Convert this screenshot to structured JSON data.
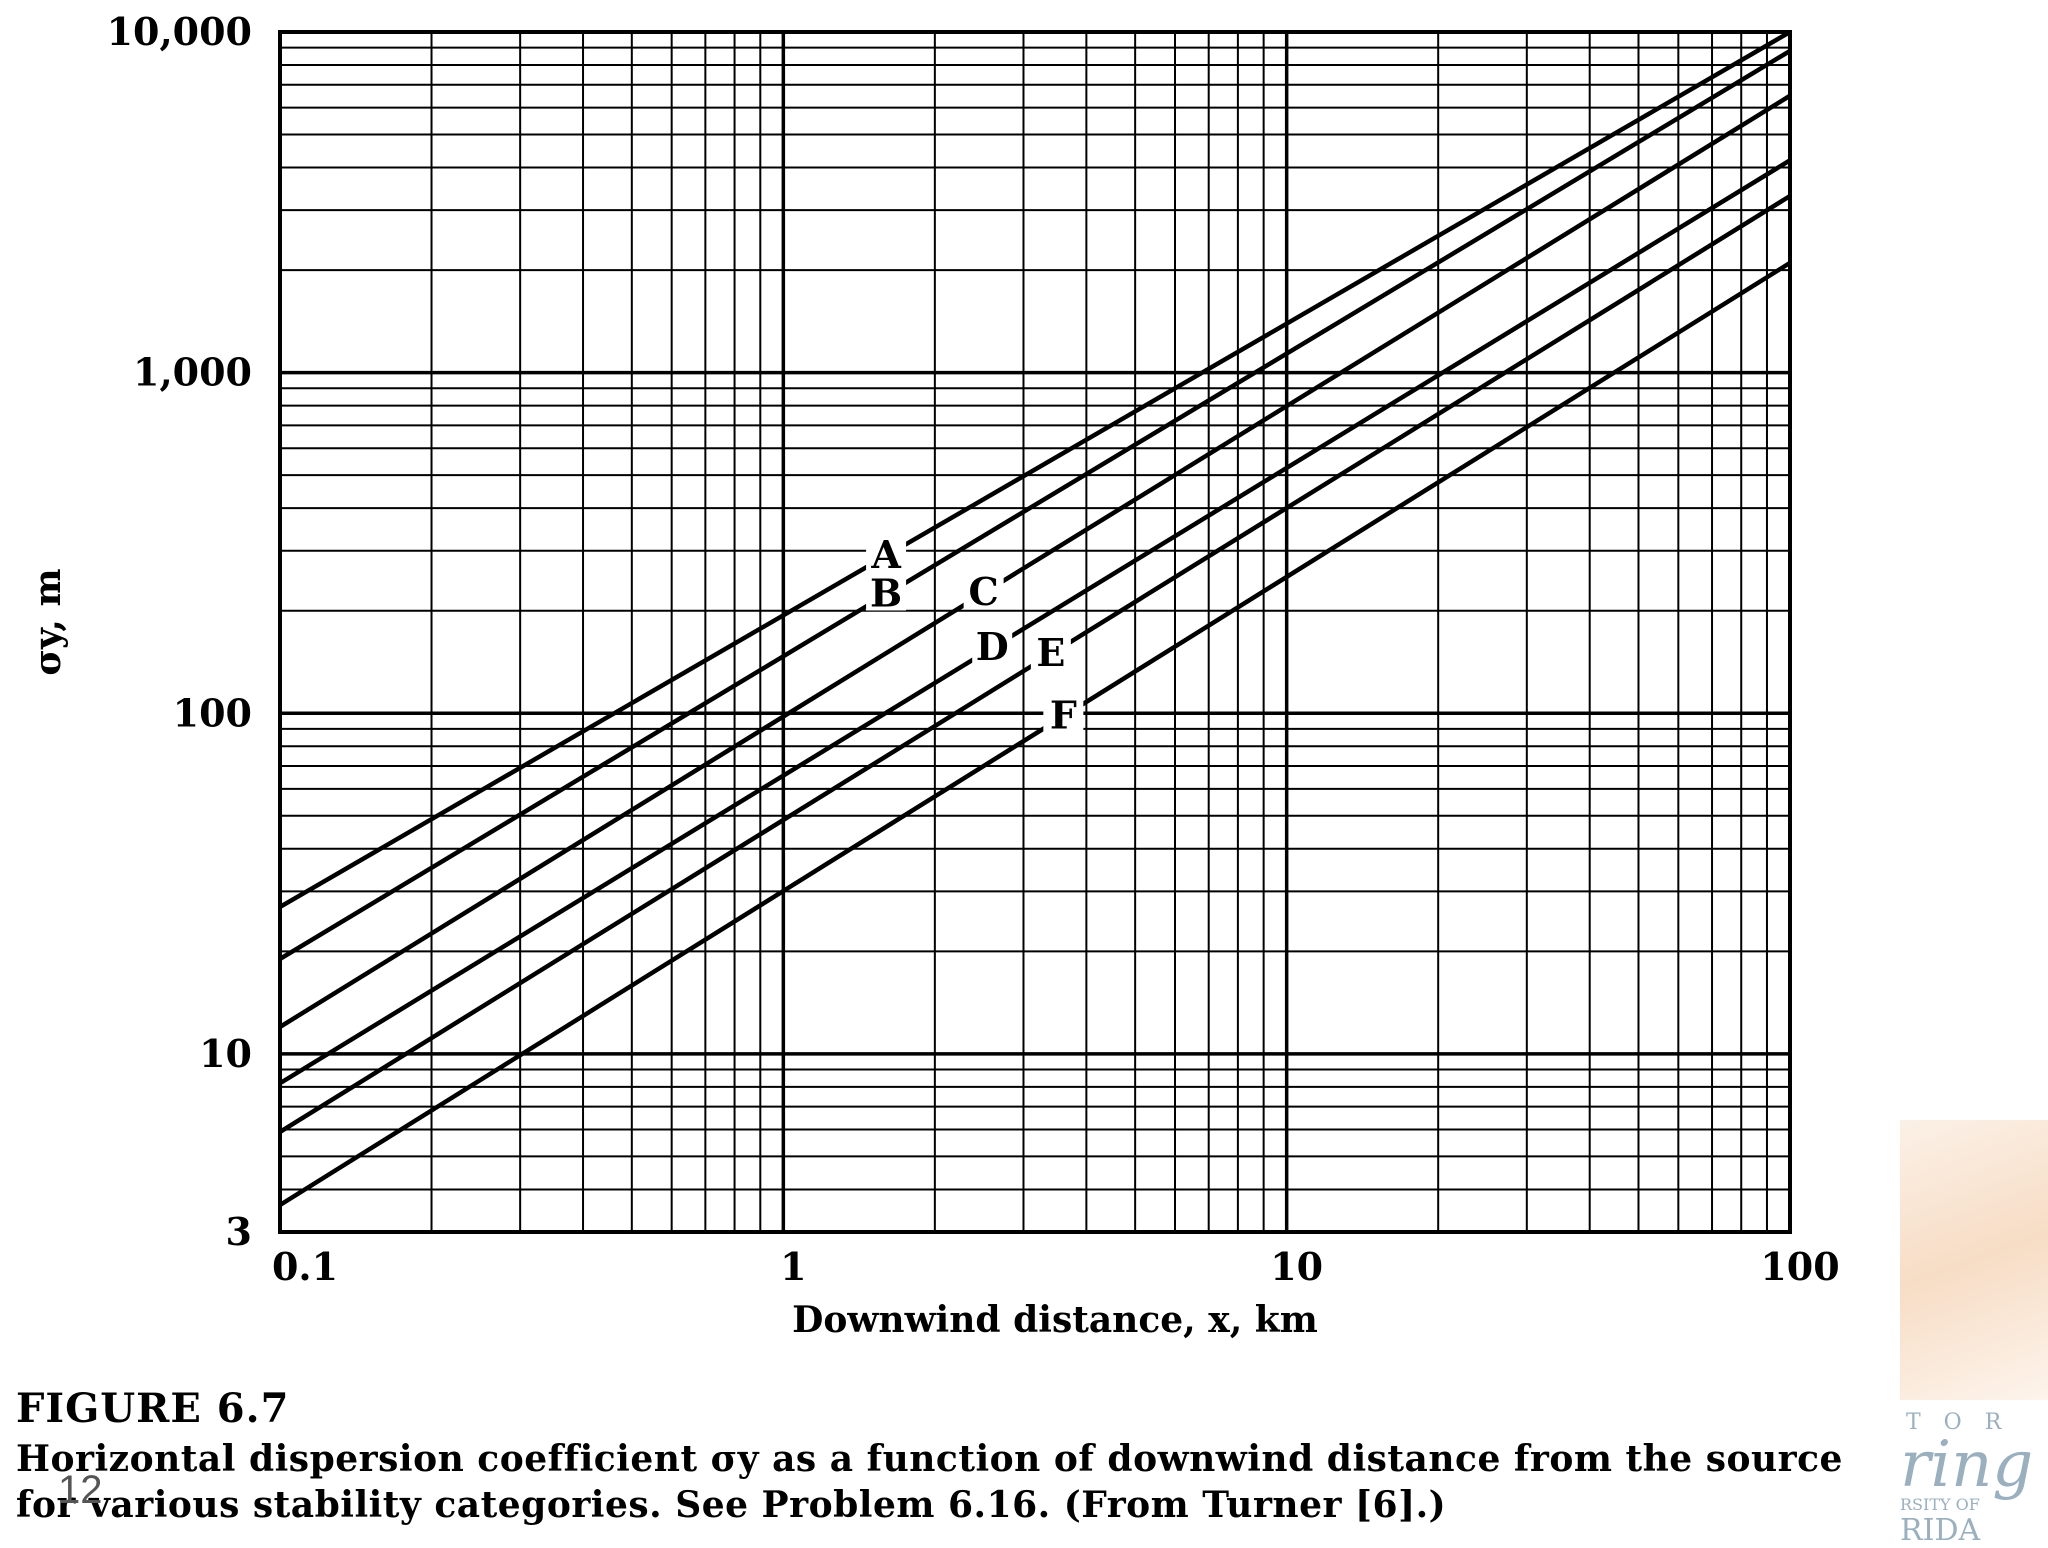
{
  "chart_data": {
    "type": "line",
    "title": "",
    "xlabel": "Downwind distance, x, km",
    "ylabel": "σy, m",
    "xscale": "log",
    "yscale": "log",
    "xlim": [
      0.1,
      100
    ],
    "ylim": [
      3,
      10000
    ],
    "grid": true,
    "x_tick_labels": [
      "0.1",
      "1",
      "10",
      "100"
    ],
    "y_tick_labels": [
      "10,000",
      "1,000",
      "100",
      "10",
      "3"
    ],
    "series": [
      {
        "name": "A",
        "x": [
          0.1,
          100
        ],
        "y": [
          27,
          10000
        ]
      },
      {
        "name": "B",
        "x": [
          0.1,
          100
        ],
        "y": [
          19,
          8800
        ]
      },
      {
        "name": "C",
        "x": [
          0.1,
          100
        ],
        "y": [
          12,
          6500
        ]
      },
      {
        "name": "D",
        "x": [
          0.1,
          100
        ],
        "y": [
          8.2,
          4200
        ]
      },
      {
        "name": "E",
        "x": [
          0.1,
          100
        ],
        "y": [
          5.9,
          3300
        ]
      },
      {
        "name": "F",
        "x": [
          0.1,
          100
        ],
        "y": [
          3.6,
          2100
        ]
      }
    ]
  },
  "caption": {
    "figure_title": "FIGURE 6.7",
    "text": "Horizontal dispersion coefficient σy as a function of downwind distance from the source for various stability categories. See Problem 6.16. (From Turner [6].)"
  },
  "slide_number": "12",
  "logo": {
    "line1": "T O R",
    "line2": "ring",
    "line3": "RSITY OF",
    "line4": "RIDA"
  }
}
